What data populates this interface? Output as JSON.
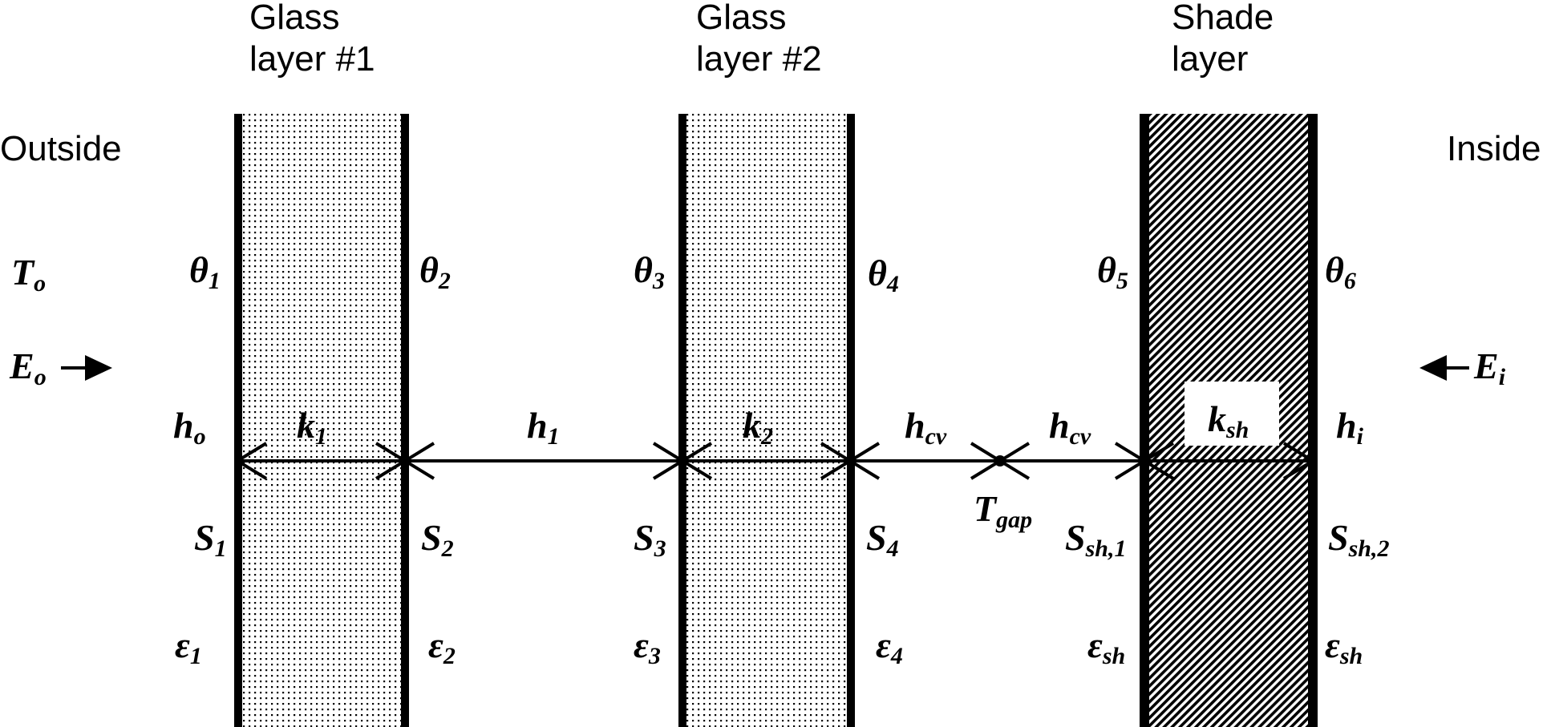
{
  "captions": {
    "glass1": [
      "Glass",
      "layer #1"
    ],
    "glass2": [
      "Glass",
      "layer #2"
    ],
    "shade": [
      "Shade",
      "layer"
    ],
    "outside": "Outside",
    "inside": "Inside"
  },
  "symbols": {
    "T_o": [
      "T",
      "o"
    ],
    "E_o": [
      "E",
      "o"
    ],
    "E_i": [
      "E",
      "i"
    ],
    "theta1": [
      "θ",
      "1"
    ],
    "theta2": [
      "θ",
      "2"
    ],
    "theta3": [
      "θ",
      "3"
    ],
    "theta4": [
      "θ",
      "4"
    ],
    "theta5": [
      "θ",
      "5"
    ],
    "theta6": [
      "θ",
      "6"
    ],
    "h_o": [
      "h",
      "o"
    ],
    "k1": [
      "k",
      "1"
    ],
    "h1": [
      "h",
      "1"
    ],
    "k2": [
      "k",
      "2"
    ],
    "hcv_a": [
      "h",
      "cv"
    ],
    "hcv_b": [
      "h",
      "cv"
    ],
    "k_sh": [
      "k",
      "sh"
    ],
    "h_i": [
      "h",
      "i"
    ],
    "T_gap": [
      "T",
      "gap"
    ],
    "S1": [
      "S",
      "1"
    ],
    "S2": [
      "S",
      "2"
    ],
    "S3": [
      "S",
      "3"
    ],
    "S4": [
      "S",
      "4"
    ],
    "S_sh1": [
      "S",
      "sh,1"
    ],
    "S_sh2": [
      "S",
      "sh,2"
    ],
    "eps1": [
      "ε",
      "1"
    ],
    "eps2": [
      "ε",
      "2"
    ],
    "eps3": [
      "ε",
      "3"
    ],
    "eps4": [
      "ε",
      "4"
    ],
    "eps_sh_a": [
      "ε",
      "sh"
    ],
    "eps_sh_b": [
      "ε",
      "sh"
    ]
  },
  "colors": {
    "ink": "#000000",
    "background": "#ffffff"
  }
}
